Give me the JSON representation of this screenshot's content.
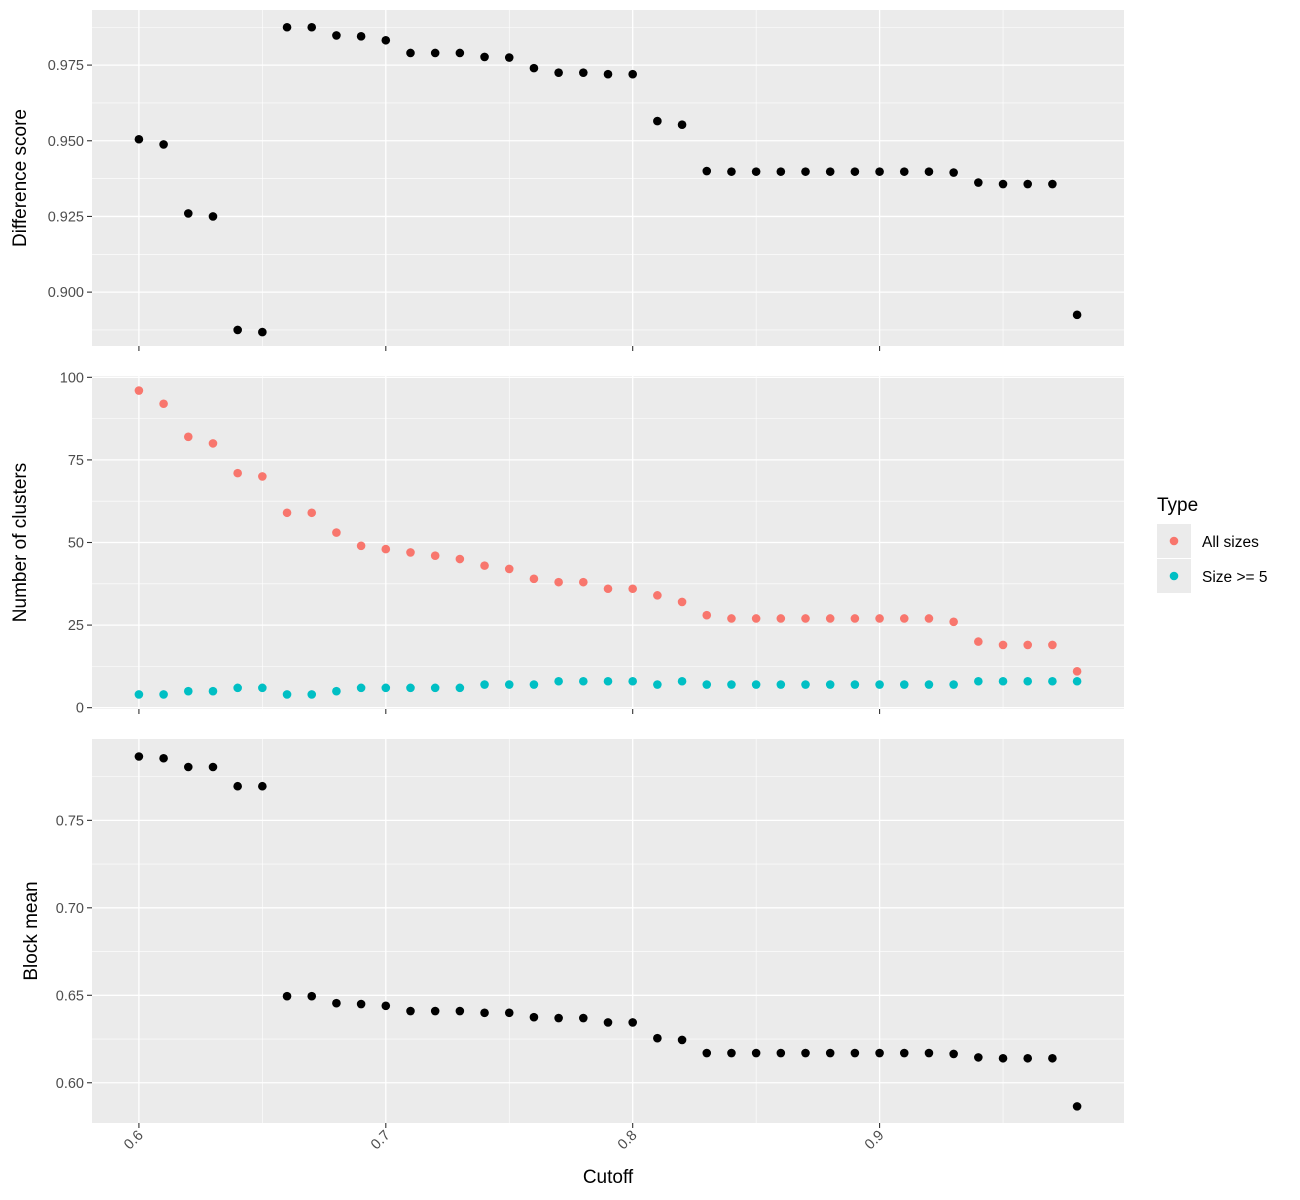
{
  "chart_data": {
    "type": "scatter",
    "xlabel": "Cutoff",
    "x_ticks": [
      0.6,
      0.7,
      0.8,
      0.9
    ],
    "xlim": [
      0.581,
      0.999
    ],
    "x": [
      0.6,
      0.61,
      0.62,
      0.63,
      0.64,
      0.65,
      0.66,
      0.67,
      0.68,
      0.69,
      0.7,
      0.71,
      0.72,
      0.73,
      0.74,
      0.75,
      0.76,
      0.77,
      0.78,
      0.79,
      0.8,
      0.81,
      0.82,
      0.83,
      0.84,
      0.85,
      0.86,
      0.87,
      0.88,
      0.89,
      0.9,
      0.91,
      0.92,
      0.93,
      0.94,
      0.95,
      0.96,
      0.97,
      0.98
    ],
    "legend": {
      "title": "Type",
      "position": "right",
      "entries": [
        {
          "label": "All sizes",
          "color": "#F8766D"
        },
        {
          "label": "Size >= 5",
          "color": "#00BFC4"
        }
      ]
    },
    "panels": [
      {
        "ylabel": "Difference score",
        "ylim": [
          0.8822,
          0.9932
        ],
        "y_ticks": [
          0.9,
          0.925,
          0.95,
          0.975
        ],
        "y_tick_labels": [
          "0.900",
          "0.925",
          "0.950",
          "0.975"
        ],
        "series": [
          {
            "color": "#000000",
            "values": [
              0.9505,
              0.9488,
              0.926,
              0.925,
              0.8875,
              0.8868,
              0.9875,
              0.9875,
              0.9848,
              0.9845,
              0.9832,
              0.979,
              0.979,
              0.979,
              0.9777,
              0.9775,
              0.974,
              0.9725,
              0.9725,
              0.972,
              0.972,
              0.9565,
              0.9553,
              0.94,
              0.9398,
              0.9398,
              0.9398,
              0.9398,
              0.9398,
              0.9398,
              0.9398,
              0.9398,
              0.9398,
              0.9395,
              0.9362,
              0.9357,
              0.9357,
              0.9357,
              0.8925
            ]
          }
        ]
      },
      {
        "ylabel": "Number of clusters",
        "ylim": [
          -0.4,
          100.4
        ],
        "y_ticks": [
          0,
          25,
          50,
          75,
          100
        ],
        "y_tick_labels": [
          "0",
          "25",
          "50",
          "75",
          "100"
        ],
        "series": [
          {
            "name": "All sizes",
            "color": "#F8766D",
            "values": [
              96,
              92,
              82,
              80,
              71,
              70,
              59,
              59,
              53,
              49,
              48,
              47,
              46,
              45,
              43,
              42,
              39,
              38,
              38,
              36,
              36,
              34,
              32,
              28,
              27,
              27,
              27,
              27,
              27,
              27,
              27,
              27,
              27,
              26,
              20,
              19,
              19,
              19,
              11
            ]
          },
          {
            "name": "Size >= 5",
            "color": "#00BFC4",
            "values": [
              4,
              4,
              5,
              5,
              6,
              6,
              4,
              4,
              5,
              6,
              6,
              6,
              6,
              6,
              7,
              7,
              7,
              8,
              8,
              8,
              8,
              7,
              8,
              7,
              7,
              7,
              7,
              7,
              7,
              7,
              7,
              7,
              7,
              7,
              8,
              8,
              8,
              8,
              8
            ]
          }
        ]
      },
      {
        "ylabel": "Block mean",
        "ylim": [
          0.577,
          0.7965
        ],
        "y_ticks": [
          0.6,
          0.65,
          0.7,
          0.75
        ],
        "y_tick_labels": [
          "0.60",
          "0.65",
          "0.70",
          "0.75"
        ],
        "series": [
          {
            "color": "#000000",
            "values": [
              0.7865,
              0.7855,
              0.7805,
              0.7805,
              0.7695,
              0.7695,
              0.6495,
              0.6495,
              0.6455,
              0.645,
              0.644,
              0.641,
              0.641,
              0.641,
              0.64,
              0.64,
              0.6375,
              0.637,
              0.637,
              0.6345,
              0.6345,
              0.6255,
              0.6245,
              0.617,
              0.617,
              0.617,
              0.617,
              0.617,
              0.617,
              0.617,
              0.617,
              0.617,
              0.617,
              0.6165,
              0.6145,
              0.614,
              0.614,
              0.614,
              0.5865
            ]
          }
        ]
      }
    ]
  }
}
